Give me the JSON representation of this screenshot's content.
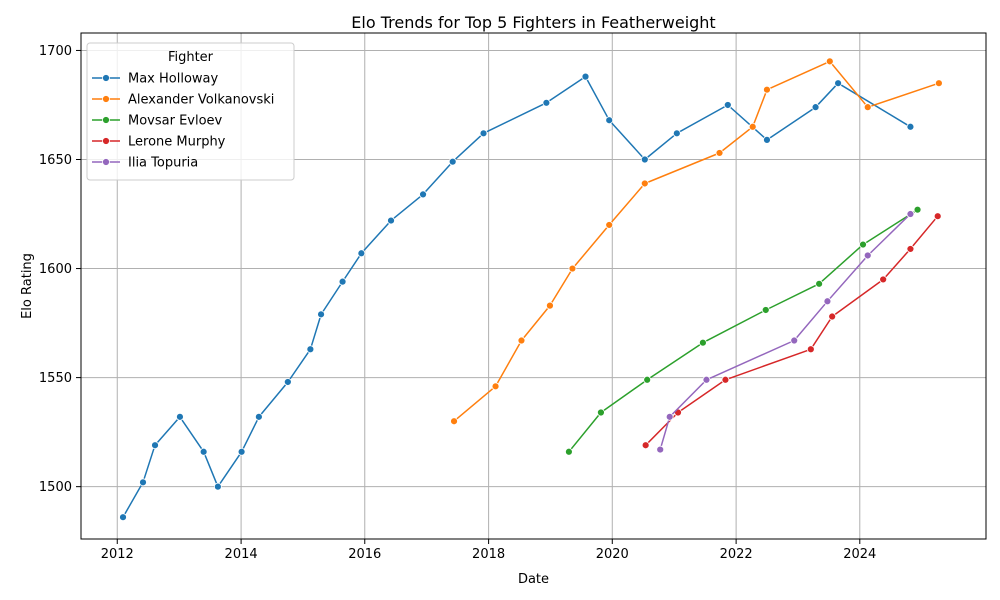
{
  "chart_data": {
    "type": "line",
    "title": "Elo Trends for Top 5 Fighters in Featherweight",
    "xlabel": "Date",
    "ylabel": "Elo Rating",
    "x_axis_kind": "date",
    "xlim": [
      "2011-06-01",
      "2026-01-15"
    ],
    "ylim": [
      1476,
      1708
    ],
    "x_ticks": [
      "2012",
      "2014",
      "2016",
      "2018",
      "2020",
      "2022",
      "2024"
    ],
    "y_ticks": [
      1500,
      1550,
      1600,
      1650,
      1700
    ],
    "grid": true,
    "legend": {
      "title": "Fighter",
      "position": "top-left"
    },
    "series": [
      {
        "name": "Max Holloway",
        "color": "#1f77b4",
        "points": [
          [
            "2012-02-04",
            1486
          ],
          [
            "2012-06-01",
            1502
          ],
          [
            "2012-08-11",
            1519
          ],
          [
            "2013-01-05",
            1532
          ],
          [
            "2013-05-25",
            1516
          ],
          [
            "2013-08-17",
            1500
          ],
          [
            "2014-01-04",
            1516
          ],
          [
            "2014-04-16",
            1532
          ],
          [
            "2014-10-04",
            1548
          ],
          [
            "2015-02-14",
            1563
          ],
          [
            "2015-04-18",
            1579
          ],
          [
            "2015-08-23",
            1594
          ],
          [
            "2015-12-12",
            1607
          ],
          [
            "2016-06-04",
            1622
          ],
          [
            "2016-12-10",
            1634
          ],
          [
            "2017-06-03",
            1649
          ],
          [
            "2017-12-02",
            1662
          ],
          [
            "2018-12-08",
            1676
          ],
          [
            "2019-07-27",
            1688
          ],
          [
            "2019-12-14",
            1668
          ],
          [
            "2020-07-11",
            1650
          ],
          [
            "2021-01-16",
            1662
          ],
          [
            "2021-11-13",
            1675
          ],
          [
            "2022-07-02",
            1659
          ],
          [
            "2023-04-15",
            1674
          ],
          [
            "2023-08-26",
            1685
          ],
          [
            "2024-10-26",
            1665
          ]
        ]
      },
      {
        "name": "Alexander Volkanovski",
        "color": "#ff7f0e",
        "points": [
          [
            "2017-06-11",
            1530
          ],
          [
            "2018-02-11",
            1546
          ],
          [
            "2018-07-14",
            1567
          ],
          [
            "2018-12-29",
            1583
          ],
          [
            "2019-05-11",
            1600
          ],
          [
            "2019-12-14",
            1620
          ],
          [
            "2020-07-11",
            1639
          ],
          [
            "2021-09-25",
            1653
          ],
          [
            "2022-04-09",
            1665
          ],
          [
            "2022-07-02",
            1682
          ],
          [
            "2023-07-08",
            1695
          ],
          [
            "2024-02-17",
            1674
          ],
          [
            "2025-04-12",
            1685
          ]
        ]
      },
      {
        "name": "Movsar Evloev",
        "color": "#2ca02c",
        "points": [
          [
            "2019-04-20",
            1516
          ],
          [
            "2019-10-26",
            1534
          ],
          [
            "2020-07-25",
            1549
          ],
          [
            "2021-06-19",
            1566
          ],
          [
            "2022-06-25",
            1581
          ],
          [
            "2023-05-06",
            1593
          ],
          [
            "2024-01-20",
            1611
          ],
          [
            "2024-12-07",
            1627
          ]
        ]
      },
      {
        "name": "Lerone Murphy",
        "color": "#d62728",
        "points": [
          [
            "2020-07-16",
            1519
          ],
          [
            "2021-01-23",
            1534
          ],
          [
            "2021-10-30",
            1549
          ],
          [
            "2023-03-18",
            1563
          ],
          [
            "2023-07-22",
            1578
          ],
          [
            "2024-05-18",
            1595
          ],
          [
            "2024-10-26",
            1609
          ],
          [
            "2025-04-05",
            1624
          ]
        ]
      },
      {
        "name": "Ilia Topuria",
        "color": "#9467bd",
        "points": [
          [
            "2020-10-10",
            1517
          ],
          [
            "2020-12-05",
            1532
          ],
          [
            "2021-07-10",
            1549
          ],
          [
            "2022-12-10",
            1567
          ],
          [
            "2023-06-24",
            1585
          ],
          [
            "2024-02-17",
            1606
          ],
          [
            "2024-10-26",
            1625
          ]
        ]
      }
    ]
  }
}
